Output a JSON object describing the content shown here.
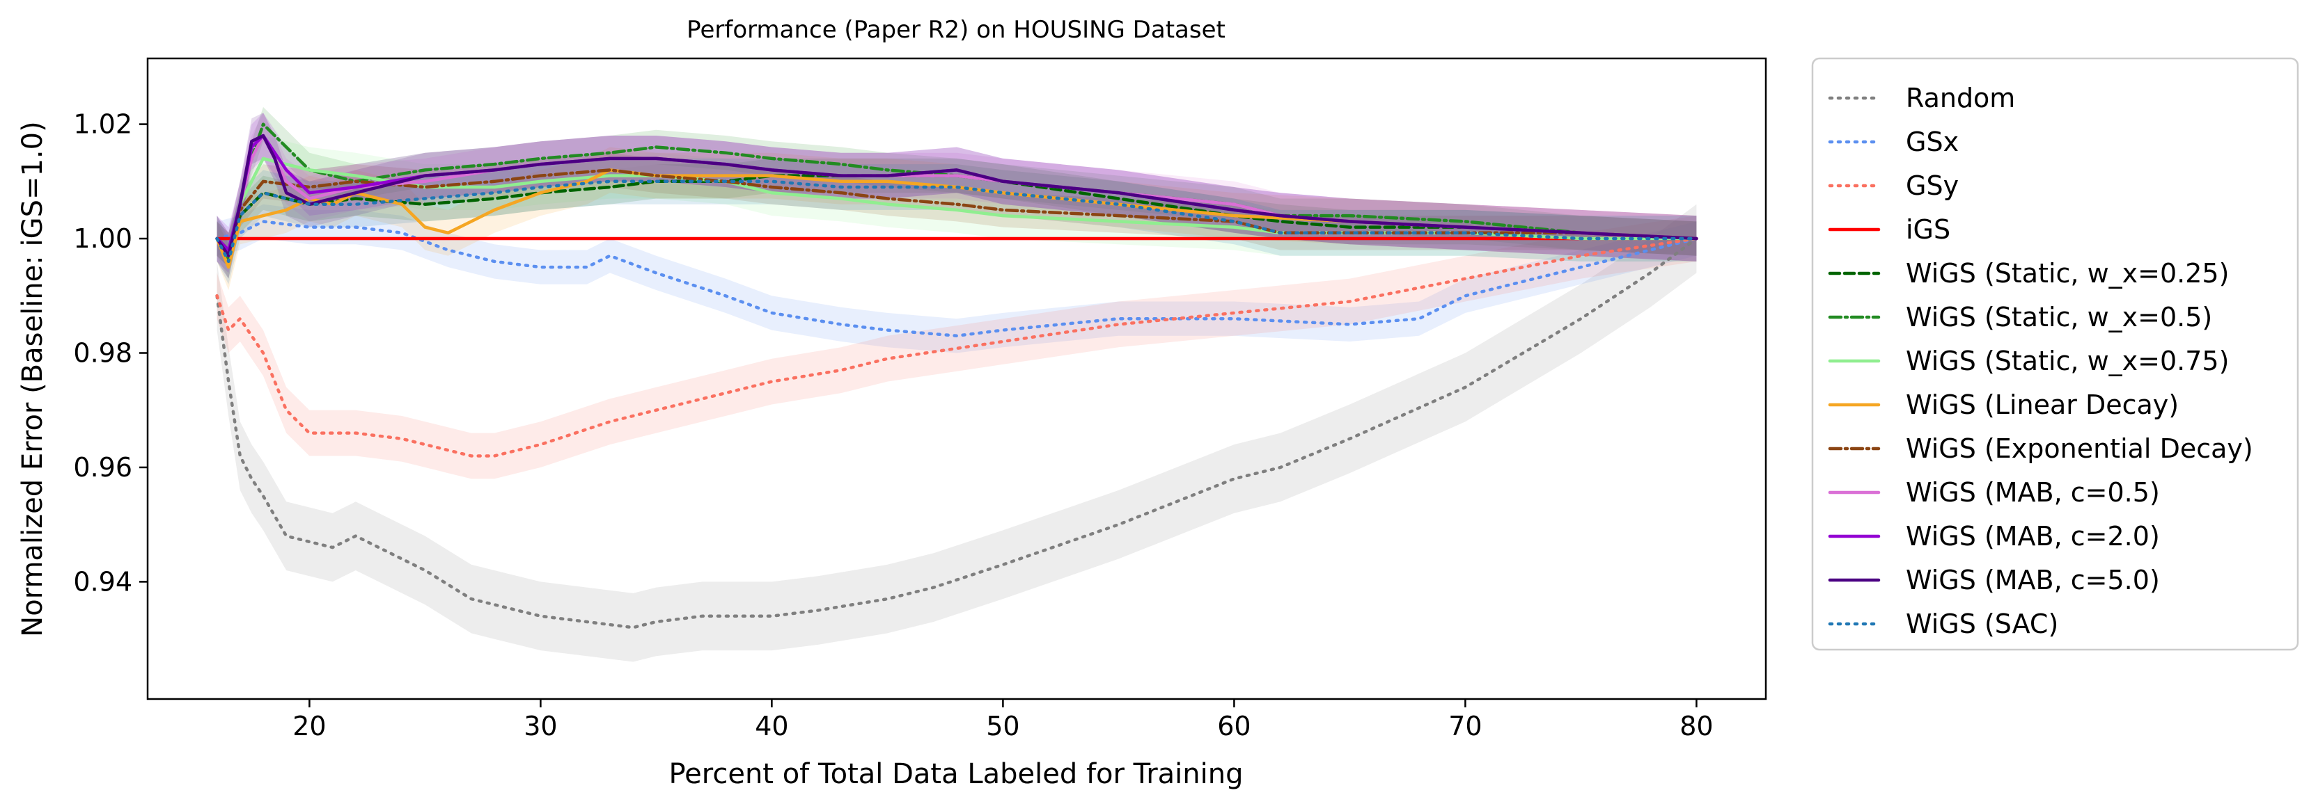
{
  "chart_data": {
    "type": "line",
    "title": "Performance (Paper R2) on HOUSING Dataset",
    "xlabel": "Percent of Total Data Labeled for Training",
    "ylabel": "Normalized Error (Baseline: iGS=1.0)",
    "xlim": [
      13,
      83
    ],
    "ylim": [
      0.9195,
      1.0315
    ],
    "xticks": [
      20,
      30,
      40,
      50,
      60,
      70,
      80
    ],
    "yticks": [
      0.94,
      0.96,
      0.98,
      1.0,
      1.02
    ],
    "xtick_labels": [
      "20",
      "30",
      "40",
      "50",
      "60",
      "70",
      "80"
    ],
    "ytick_labels": [
      "0.94",
      "0.96",
      "0.98",
      "1.00",
      "1.02"
    ],
    "grid": false,
    "legend_position": "outside-right",
    "series": [
      {
        "name": "Random",
        "color": "#7f7f7f",
        "dash": "dotted",
        "band": 0.006,
        "x": [
          16,
          16.5,
          17,
          17.5,
          18,
          19,
          20,
          21,
          22,
          23,
          25,
          27,
          28,
          30,
          32,
          34,
          35,
          37,
          40,
          42,
          45,
          47,
          50,
          55,
          60,
          62,
          65,
          70,
          75,
          78,
          80
        ],
        "y": [
          0.99,
          0.975,
          0.962,
          0.958,
          0.955,
          0.948,
          0.947,
          0.946,
          0.948,
          0.946,
          0.942,
          0.937,
          0.936,
          0.934,
          0.933,
          0.932,
          0.933,
          0.934,
          0.934,
          0.935,
          0.937,
          0.939,
          0.943,
          0.95,
          0.958,
          0.96,
          0.965,
          0.974,
          0.986,
          0.994,
          1.0
        ]
      },
      {
        "name": "GSx",
        "color": "#5b8ff0",
        "dash": "dotted",
        "band": 0.003,
        "x": [
          16,
          17,
          18,
          20,
          22,
          24,
          26,
          28,
          30,
          32,
          33,
          35,
          38,
          40,
          43,
          45,
          48,
          50,
          55,
          60,
          65,
          68,
          70,
          75,
          80
        ],
        "y": [
          1.0,
          1.001,
          1.003,
          1.002,
          1.002,
          1.001,
          0.998,
          0.996,
          0.995,
          0.995,
          0.997,
          0.994,
          0.99,
          0.987,
          0.985,
          0.984,
          0.983,
          0.984,
          0.986,
          0.986,
          0.985,
          0.986,
          0.99,
          0.995,
          1.0
        ]
      },
      {
        "name": "GSy",
        "color": "#fa7060",
        "dash": "dotted",
        "band": 0.004,
        "x": [
          16,
          16.5,
          17,
          18,
          19,
          20,
          22,
          24,
          26,
          27,
          28,
          30,
          33,
          35,
          38,
          40,
          43,
          45,
          50,
          55,
          60,
          65,
          70,
          75,
          80
        ],
        "y": [
          0.99,
          0.984,
          0.986,
          0.98,
          0.97,
          0.966,
          0.966,
          0.965,
          0.963,
          0.962,
          0.962,
          0.964,
          0.968,
          0.97,
          0.973,
          0.975,
          0.977,
          0.979,
          0.982,
          0.985,
          0.987,
          0.989,
          0.993,
          0.997,
          1.0
        ]
      },
      {
        "name": "iGS",
        "color": "#ff0000",
        "dash": "solid",
        "band": 0,
        "x": [
          16,
          80
        ],
        "y": [
          1.0,
          1.0
        ]
      },
      {
        "name": "WiGS (Static, w_x=0.25)",
        "color": "#006400",
        "dash": "dashed",
        "band": 0.003,
        "x": [
          16,
          16.5,
          17,
          18,
          20,
          22,
          25,
          28,
          30,
          33,
          35,
          38,
          40,
          43,
          45,
          48,
          50,
          55,
          60,
          62,
          65,
          70,
          75,
          80
        ],
        "y": [
          1.0,
          0.998,
          1.004,
          1.008,
          1.006,
          1.007,
          1.006,
          1.007,
          1.008,
          1.009,
          1.01,
          1.01,
          1.011,
          1.011,
          1.011,
          1.011,
          1.01,
          1.007,
          1.004,
          1.003,
          1.002,
          1.002,
          1.001,
          1.0
        ]
      },
      {
        "name": "WiGS (Static, w_x=0.5)",
        "color": "#228b22",
        "dash": "dashdot",
        "band": 0.003,
        "x": [
          16,
          16.5,
          17,
          17.5,
          18,
          19,
          20,
          22,
          25,
          28,
          30,
          33,
          35,
          38,
          40,
          43,
          45,
          48,
          50,
          55,
          60,
          62,
          65,
          70,
          75,
          80
        ],
        "y": [
          1.0,
          0.996,
          1.006,
          1.014,
          1.02,
          1.016,
          1.012,
          1.01,
          1.012,
          1.013,
          1.014,
          1.015,
          1.016,
          1.015,
          1.014,
          1.013,
          1.012,
          1.011,
          1.01,
          1.008,
          1.006,
          1.004,
          1.004,
          1.003,
          1.001,
          1.0
        ]
      },
      {
        "name": "WiGS (Static, w_x=0.75)",
        "color": "#90ee90",
        "dash": "solid",
        "band": 0.004,
        "x": [
          16,
          16.5,
          17,
          18,
          20,
          22,
          25,
          28,
          30,
          33,
          35,
          38,
          40,
          43,
          45,
          48,
          50,
          55,
          60,
          62,
          65,
          70,
          75,
          80
        ],
        "y": [
          1.0,
          0.997,
          1.006,
          1.014,
          1.012,
          1.011,
          1.009,
          1.009,
          1.01,
          1.011,
          1.011,
          1.01,
          1.008,
          1.007,
          1.006,
          1.005,
          1.004,
          1.003,
          1.002,
          1.001,
          1.001,
          1.001,
          1.0,
          1.0
        ]
      },
      {
        "name": "WiGS (Linear Decay)",
        "color": "#f5a623",
        "dash": "solid",
        "band": 0.004,
        "x": [
          16,
          16.5,
          17,
          18,
          19,
          20,
          21,
          22,
          24,
          25,
          26,
          27,
          28,
          30,
          32,
          33,
          35,
          38,
          40,
          43,
          45,
          48,
          50,
          55,
          60,
          65,
          70,
          75,
          80
        ],
        "y": [
          1.0,
          0.995,
          1.003,
          1.004,
          1.005,
          1.007,
          1.006,
          1.008,
          1.006,
          1.002,
          1.001,
          1.003,
          1.005,
          1.008,
          1.01,
          1.012,
          1.011,
          1.011,
          1.011,
          1.01,
          1.01,
          1.009,
          1.008,
          1.006,
          1.004,
          1.003,
          1.002,
          1.001,
          1.0
        ]
      },
      {
        "name": "WiGS (Exponential Decay)",
        "color": "#8b4513",
        "dash": "dashdot",
        "band": 0.003,
        "x": [
          16,
          16.5,
          17,
          18,
          20,
          22,
          25,
          28,
          30,
          33,
          35,
          38,
          40,
          43,
          45,
          48,
          50,
          55,
          60,
          62,
          65,
          70,
          75,
          80
        ],
        "y": [
          1.0,
          0.998,
          1.005,
          1.01,
          1.009,
          1.01,
          1.009,
          1.01,
          1.011,
          1.012,
          1.011,
          1.01,
          1.009,
          1.008,
          1.007,
          1.006,
          1.005,
          1.004,
          1.003,
          1.001,
          1.001,
          1.001,
          1.001,
          1.0
        ]
      },
      {
        "name": "WiGS (MAB, c=0.5)",
        "color": "#da70d6",
        "dash": "solid",
        "band": 0.004,
        "x": [
          16,
          16.5,
          17,
          17.5,
          18,
          19,
          20,
          22,
          25,
          28,
          30,
          33,
          35,
          38,
          40,
          43,
          45,
          48,
          50,
          55,
          60,
          62,
          65,
          70,
          75,
          80
        ],
        "y": [
          1.0,
          0.997,
          1.006,
          1.014,
          1.018,
          1.01,
          1.007,
          1.009,
          1.01,
          1.012,
          1.013,
          1.014,
          1.014,
          1.013,
          1.012,
          1.011,
          1.011,
          1.011,
          1.01,
          1.008,
          1.006,
          1.004,
          1.003,
          1.002,
          1.001,
          1.0
        ]
      },
      {
        "name": "WiGS (MAB, c=2.0)",
        "color": "#9400d3",
        "dash": "solid",
        "band": 0.004,
        "x": [
          16,
          16.5,
          17,
          17.5,
          18,
          19,
          20,
          22,
          25,
          28,
          30,
          33,
          35,
          38,
          40,
          43,
          45,
          48,
          50,
          55,
          60,
          62,
          65,
          70,
          75,
          80
        ],
        "y": [
          1.0,
          0.998,
          1.006,
          1.016,
          1.018,
          1.012,
          1.008,
          1.009,
          1.011,
          1.012,
          1.013,
          1.014,
          1.014,
          1.013,
          1.012,
          1.011,
          1.011,
          1.012,
          1.01,
          1.008,
          1.005,
          1.004,
          1.003,
          1.002,
          1.001,
          1.0
        ]
      },
      {
        "name": "WiGS (MAB, c=5.0)",
        "color": "#4b0082",
        "dash": "solid",
        "band": 0.004,
        "x": [
          16,
          16.5,
          17,
          17.5,
          18,
          18.5,
          19,
          20,
          22,
          25,
          28,
          30,
          33,
          35,
          38,
          40,
          43,
          45,
          48,
          50,
          55,
          60,
          62,
          65,
          70,
          75,
          80
        ],
        "y": [
          1.0,
          0.997,
          1.006,
          1.017,
          1.018,
          1.014,
          1.008,
          1.006,
          1.008,
          1.011,
          1.012,
          1.013,
          1.014,
          1.014,
          1.013,
          1.012,
          1.011,
          1.011,
          1.012,
          1.01,
          1.008,
          1.005,
          1.004,
          1.003,
          1.002,
          1.001,
          1.0
        ]
      },
      {
        "name": "WiGS (SAC)",
        "color": "#1f77b4",
        "dash": "dotted",
        "band": 0.004,
        "x": [
          16,
          16.5,
          17,
          18,
          20,
          22,
          25,
          28,
          30,
          33,
          35,
          38,
          40,
          43,
          45,
          48,
          50,
          55,
          60,
          62,
          65,
          70,
          75,
          80
        ],
        "y": [
          1.0,
          0.996,
          1.004,
          1.008,
          1.006,
          1.006,
          1.007,
          1.008,
          1.009,
          1.01,
          1.01,
          1.01,
          1.01,
          1.009,
          1.009,
          1.009,
          1.008,
          1.006,
          1.003,
          1.001,
          1.001,
          1.001,
          1.0,
          1.0
        ]
      }
    ]
  }
}
